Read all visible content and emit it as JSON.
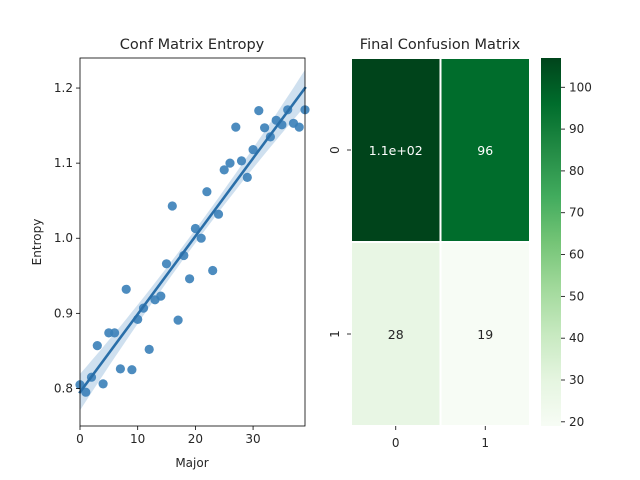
{
  "chart_data": [
    {
      "type": "scatter",
      "title": "Conf Matrix Entropy",
      "xlabel": "Major",
      "ylabel": "Entropy",
      "xlim": [
        0,
        39
      ],
      "ylim": [
        0.75,
        1.24
      ],
      "xticks": [
        0,
        10,
        20,
        30
      ],
      "yticks": [
        0.8,
        0.9,
        1.0,
        1.1,
        1.2
      ],
      "xtick_labels": [
        "0",
        "10",
        "20",
        "30"
      ],
      "ytick_labels": [
        "0.8",
        "0.9",
        "1.0",
        "1.1",
        "1.2"
      ],
      "grid": false,
      "point_color": "#3a7fb8",
      "line_color": "#2a6fa9",
      "ci_color": "#a8c6e2",
      "points": [
        {
          "x": 0,
          "y": 0.805
        },
        {
          "x": 1,
          "y": 0.795
        },
        {
          "x": 2,
          "y": 0.815
        },
        {
          "x": 3,
          "y": 0.857
        },
        {
          "x": 4,
          "y": 0.806
        },
        {
          "x": 5,
          "y": 0.874
        },
        {
          "x": 6,
          "y": 0.874
        },
        {
          "x": 7,
          "y": 0.826
        },
        {
          "x": 8,
          "y": 0.932
        },
        {
          "x": 9,
          "y": 0.825
        },
        {
          "x": 10,
          "y": 0.892
        },
        {
          "x": 11,
          "y": 0.907
        },
        {
          "x": 12,
          "y": 0.852
        },
        {
          "x": 13,
          "y": 0.918
        },
        {
          "x": 14,
          "y": 0.923
        },
        {
          "x": 15,
          "y": 0.966
        },
        {
          "x": 16,
          "y": 1.043
        },
        {
          "x": 17,
          "y": 0.891
        },
        {
          "x": 18,
          "y": 0.977
        },
        {
          "x": 19,
          "y": 0.946
        },
        {
          "x": 20,
          "y": 1.013
        },
        {
          "x": 21,
          "y": 1.0
        },
        {
          "x": 22,
          "y": 1.062
        },
        {
          "x": 23,
          "y": 0.957
        },
        {
          "x": 24,
          "y": 1.032
        },
        {
          "x": 25,
          "y": 1.091
        },
        {
          "x": 26,
          "y": 1.1
        },
        {
          "x": 27,
          "y": 1.148
        },
        {
          "x": 28,
          "y": 1.103
        },
        {
          "x": 29,
          "y": 1.081
        },
        {
          "x": 30,
          "y": 1.118
        },
        {
          "x": 31,
          "y": 1.17
        },
        {
          "x": 32,
          "y": 1.147
        },
        {
          "x": 33,
          "y": 1.135
        },
        {
          "x": 34,
          "y": 1.157
        },
        {
          "x": 35,
          "y": 1.151
        },
        {
          "x": 36,
          "y": 1.171
        },
        {
          "x": 37,
          "y": 1.153
        },
        {
          "x": 38,
          "y": 1.148
        },
        {
          "x": 39,
          "y": 1.171
        }
      ],
      "regression": {
        "x0": 0,
        "y0": 0.795,
        "x1": 39,
        "y1": 1.2
      }
    },
    {
      "type": "heatmap",
      "title": "Final Confusion Matrix",
      "row_labels": [
        "0",
        "1"
      ],
      "col_labels": [
        "0",
        "1"
      ],
      "values": [
        [
          107,
          96
        ],
        [
          28,
          19
        ]
      ],
      "annotations": [
        [
          "1.1e+02",
          "96"
        ],
        [
          "28",
          "19"
        ]
      ],
      "vmin": 19,
      "vmax": 107,
      "colorbar_ticks": [
        20,
        30,
        40,
        50,
        60,
        70,
        80,
        90,
        100
      ],
      "colorbar_tick_labels": [
        "20",
        "30",
        "40",
        "50",
        "60",
        "70",
        "80",
        "90",
        "100"
      ],
      "colormap": "Greens",
      "colormap_stops": [
        "#f7fcf5",
        "#e5f5e0",
        "#c7e9c0",
        "#a1d99b",
        "#74c476",
        "#41ab5d",
        "#238b45",
        "#006d2c",
        "#00441b"
      ]
    }
  ]
}
